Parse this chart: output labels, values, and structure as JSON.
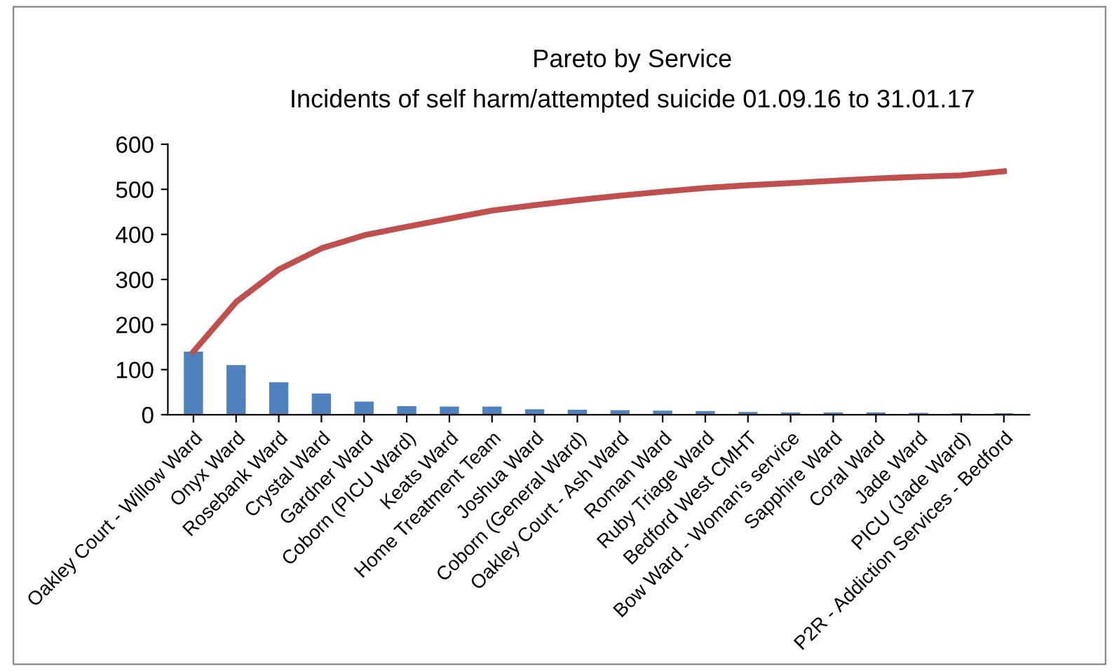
{
  "chart_data": {
    "type": "bar",
    "title": "Pareto by Service",
    "subtitle": "Incidents of self harm/attempted suicide 01.09.16 to 31.01.17",
    "categories": [
      "Oakley Court - Willow Ward",
      "Onyx Ward",
      "Rosebank Ward",
      "Crystal Ward",
      "Gardner Ward",
      "Coborn (PICU Ward)",
      "Keats Ward",
      "Home Treatment Team",
      "Joshua Ward",
      "Coborn (General Ward)",
      "Oakley Court - Ash Ward",
      "Roman Ward",
      "Ruby Triage Ward",
      "Bedford West CMHT",
      "Bow Ward - Woman's service",
      "Sapphire Ward",
      "Coral Ward",
      "Jade Ward",
      "PICU (Jade Ward)",
      "P2R - Addiction Services - Bedford"
    ],
    "series": [
      {
        "color": "#4f81bd",
        "values": [
          140,
          110,
          72,
          47,
          29,
          19,
          18,
          18,
          12,
          11,
          10,
          9,
          8,
          6,
          5,
          5,
          5,
          4,
          3,
          3
        ]
      },
      {
        "type": "line",
        "color": "#c0504d",
        "values": [
          140,
          250,
          322,
          369,
          398,
          417,
          435,
          453,
          465,
          476,
          486,
          495,
          503,
          509,
          514,
          519,
          524,
          528,
          531,
          540
        ]
      }
    ],
    "ylim": [
      0,
      600
    ],
    "yticks": [
      0,
      100,
      200,
      300,
      400,
      500,
      600
    ],
    "grid": false,
    "legend": false
  }
}
